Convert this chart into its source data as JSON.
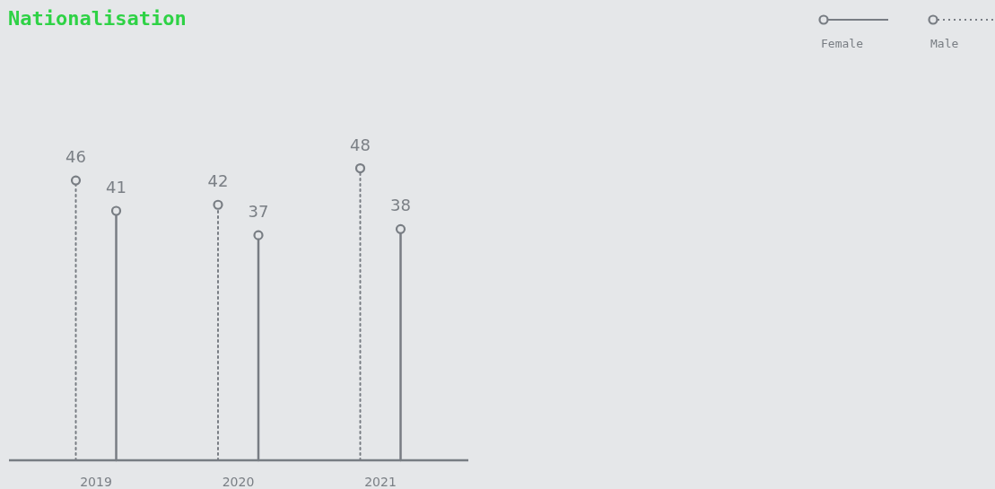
{
  "chart_data": {
    "type": "lollipop",
    "title": "Nationalisation",
    "categories": [
      "2019",
      "2020",
      "2021"
    ],
    "series": [
      {
        "name": "Female",
        "color": "#787d83",
        "values": [
          41,
          37,
          38
        ],
        "line_style": "solid"
      },
      {
        "name": "Male",
        "color": "#787d83",
        "values": [
          46,
          42,
          48
        ],
        "line_style": "dotted"
      }
    ],
    "marker": "circle",
    "data_labels": true,
    "legend": "top right"
  }
}
